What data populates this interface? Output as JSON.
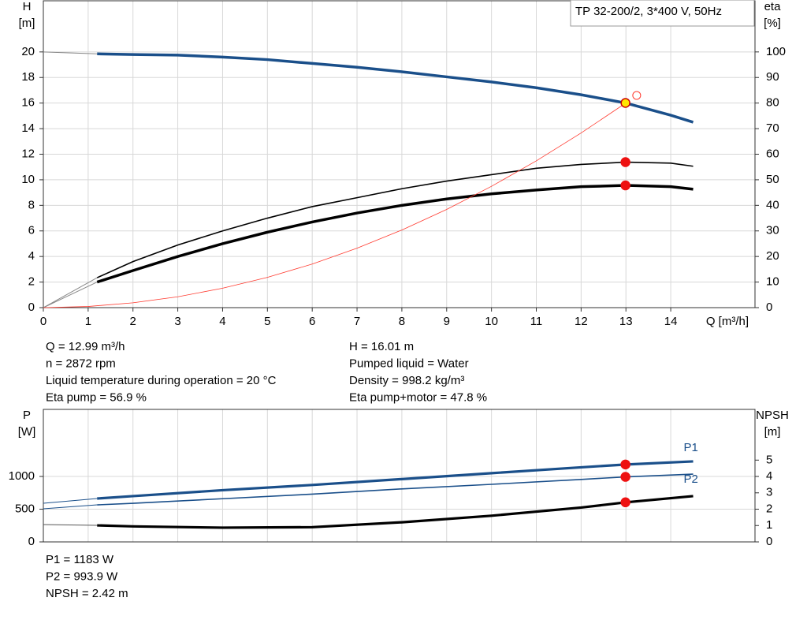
{
  "chart_data": [
    {
      "type": "line",
      "title": "TP 32-200/2, 3*400 V, 50Hz",
      "ylabel": "H",
      "yunit": "[m]",
      "y2label": "eta",
      "y2unit": "[%]",
      "xlabel": "Q [m³/h]",
      "xlim": [
        0,
        15.88
      ],
      "xticks": [
        0,
        1,
        2,
        3,
        4,
        5,
        6,
        7,
        8,
        9,
        10,
        11,
        12,
        13,
        14
      ],
      "ylim": [
        0,
        24
      ],
      "yticks": [
        0,
        2,
        4,
        6,
        8,
        10,
        12,
        14,
        16,
        18,
        20
      ],
      "y2lim": [
        0,
        120
      ],
      "y2ticks": [
        0,
        10,
        20,
        30,
        40,
        50,
        60,
        70,
        80,
        90,
        100
      ],
      "grid": true,
      "series": [
        {
          "color": "#888888",
          "width": 1,
          "x": [
            0,
            1.2
          ],
          "values": [
            20,
            19.85
          ]
        },
        {
          "color": "#1a4f8a",
          "width": 3.5,
          "x": [
            1.2,
            2,
            3,
            4,
            5,
            6,
            7,
            8,
            9,
            10,
            11,
            12,
            13,
            14,
            14.5
          ],
          "values": [
            19.85,
            19.8,
            19.75,
            19.6,
            19.4,
            19.1,
            18.8,
            18.45,
            18.05,
            17.65,
            17.2,
            16.65,
            16.0,
            15.05,
            14.5
          ]
        },
        {
          "color": "#888888",
          "width": 1,
          "axis": "y2",
          "x": [
            0,
            1.2
          ],
          "values": [
            0,
            11.7
          ]
        },
        {
          "color": "#000000",
          "width": 1.6,
          "axis": "y2",
          "x": [
            1.2,
            2,
            3,
            4,
            5,
            6,
            7,
            8,
            9,
            10,
            11,
            12,
            13,
            14,
            14.5
          ],
          "values": [
            11.7,
            18,
            24.5,
            30,
            35,
            39.5,
            43,
            46.5,
            49.5,
            52,
            54.5,
            56,
            56.9,
            56.5,
            55.3
          ]
        },
        {
          "color": "#888888",
          "width": 1,
          "axis": "y2",
          "x": [
            0,
            1.2
          ],
          "values": [
            0,
            10
          ]
        },
        {
          "color": "#000000",
          "width": 3.5,
          "axis": "y2",
          "x": [
            1.2,
            2,
            3,
            4,
            5,
            6,
            7,
            8,
            9,
            10,
            11,
            12,
            13,
            14,
            14.5
          ],
          "values": [
            10,
            14.5,
            20,
            25,
            29.5,
            33.5,
            37,
            40,
            42.5,
            44.5,
            46,
            47.3,
            47.8,
            47.3,
            46.3
          ]
        },
        {
          "color": "#ff3b30",
          "width": 0.8,
          "x": [
            0,
            1,
            2,
            3,
            4,
            5,
            6,
            7,
            8,
            9,
            10,
            11,
            12,
            13
          ],
          "values": [
            0,
            0.09,
            0.38,
            0.85,
            1.52,
            2.37,
            3.41,
            4.65,
            6.07,
            7.68,
            9.49,
            11.48,
            13.66,
            16.01
          ]
        },
        {
          "color": "#ff3b30",
          "style": "ring",
          "x": [
            13.24
          ],
          "values": [
            16.6
          ]
        },
        {
          "color": "#ffe600",
          "style": "dot",
          "x": [
            12.99
          ],
          "values": [
            16.01
          ]
        },
        {
          "color": "#ee1111",
          "style": "dot",
          "axis": "y2",
          "x": [
            12.99
          ],
          "values": [
            56.9
          ]
        },
        {
          "color": "#ee1111",
          "style": "dot",
          "axis": "y2",
          "x": [
            12.99
          ],
          "values": [
            47.8
          ]
        }
      ],
      "info": [
        [
          "Q = 12.99 m³/h",
          "n = 2872 rpm",
          "Liquid temperature during operation = 20 °C",
          "Eta pump = 56.9 %"
        ],
        [
          "H = 16.01 m",
          "Pumped liquid = Water",
          "Density = 998.2 kg/m³",
          "Eta pump+motor = 47.8 %"
        ]
      ]
    },
    {
      "type": "line",
      "ylabel": "P",
      "yunit": "[W]",
      "y2label": "NPSH",
      "y2unit": "[m]",
      "xlim": [
        0,
        15.88
      ],
      "xticks": [
        0,
        1,
        2,
        3,
        4,
        5,
        6,
        7,
        8,
        9,
        10,
        11,
        12,
        13,
        14
      ],
      "ylim": [
        0,
        2025
      ],
      "yticks": [
        0,
        500,
        1000
      ],
      "y2lim": [
        0,
        8.1
      ],
      "y2ticks": [
        0,
        1,
        2,
        3,
        4,
        5
      ],
      "grid": true,
      "series": [
        {
          "color": "#1a4f8a",
          "width": 1,
          "x": [
            0,
            1.2
          ],
          "values": [
            590,
            663
          ]
        },
        {
          "name": "P1",
          "color": "#1a4f8a",
          "width": 3.2,
          "x": [
            1.2,
            2,
            4,
            6,
            8,
            10,
            12,
            13,
            14.5
          ],
          "values": [
            663,
            700,
            790,
            870,
            960,
            1050,
            1140,
            1183,
            1230
          ]
        },
        {
          "color": "#1a4f8a",
          "width": 1,
          "x": [
            0,
            1.2
          ],
          "values": [
            506,
            566
          ]
        },
        {
          "name": "P2",
          "color": "#1a4f8a",
          "width": 1.6,
          "x": [
            1.2,
            2,
            4,
            6,
            8,
            10,
            12,
            13,
            14.5
          ],
          "values": [
            566,
            590,
            660,
            730,
            810,
            880,
            955,
            993.9,
            1036
          ]
        },
        {
          "color": "#555555",
          "width": 1,
          "axis": "y2",
          "x": [
            0,
            1.2
          ],
          "values": [
            1.06,
            1.01
          ]
        },
        {
          "color": "#000000",
          "width": 3.2,
          "axis": "y2",
          "x": [
            1.2,
            2,
            4,
            6,
            8,
            10,
            12,
            13,
            14.5
          ],
          "values": [
            1.01,
            0.95,
            0.87,
            0.9,
            1.2,
            1.6,
            2.1,
            2.42,
            2.8
          ]
        },
        {
          "color": "#ee1111",
          "style": "dot",
          "x": [
            12.99
          ],
          "values": [
            1183
          ]
        },
        {
          "color": "#ee1111",
          "style": "dot",
          "x": [
            12.99
          ],
          "values": [
            993.9
          ]
        },
        {
          "color": "#ee1111",
          "style": "dot",
          "axis": "y2",
          "x": [
            12.99
          ],
          "values": [
            2.42
          ]
        }
      ],
      "info": [
        [
          "P1 = 1183 W",
          "P2 = 993.9 W",
          "NPSH = 2.42 m"
        ]
      ]
    }
  ]
}
